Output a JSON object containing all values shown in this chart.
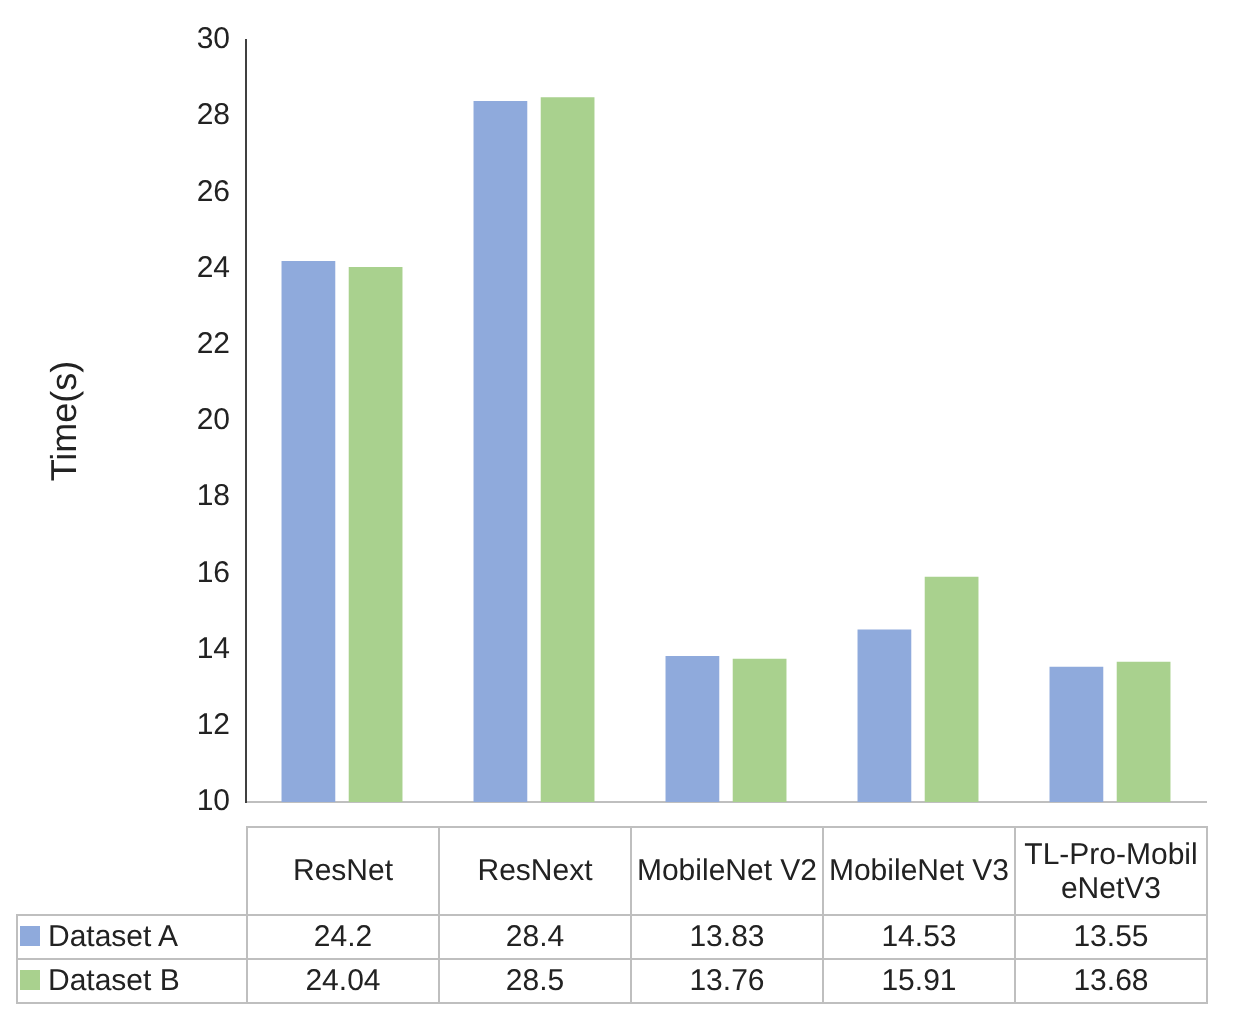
{
  "chart_data": {
    "type": "bar",
    "ylabel": "Time(s)",
    "categories": [
      "ResNet",
      "ResNext",
      "MobileNet V2",
      "MobileNet V3",
      "TL-Pro-MobileNetV3"
    ],
    "series": [
      {
        "name": "Dataset A",
        "color": "#8faadc",
        "values": [
          24.2,
          28.4,
          13.83,
          14.53,
          13.55
        ]
      },
      {
        "name": "Dataset B",
        "color": "#a9d18e",
        "values": [
          24.04,
          28.5,
          13.76,
          15.91,
          13.68
        ]
      }
    ],
    "ylim": [
      10,
      30
    ],
    "yticks": [
      10,
      12,
      14,
      16,
      18,
      20,
      22,
      24,
      26,
      28,
      30
    ],
    "grid": false,
    "legend": "bottom",
    "data_labels": true
  }
}
